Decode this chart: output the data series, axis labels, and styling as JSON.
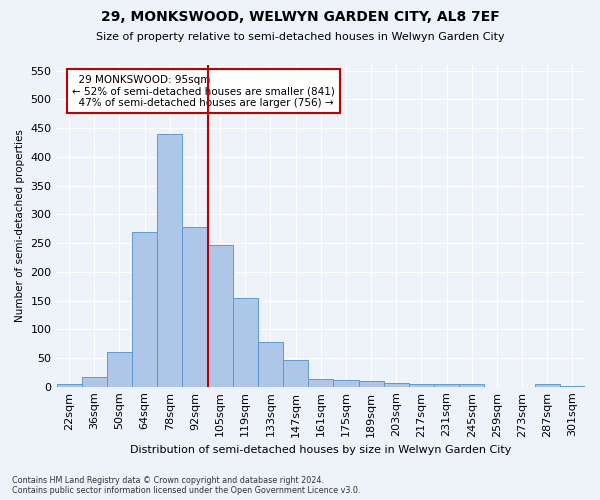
{
  "title": "29, MONKSWOOD, WELWYN GARDEN CITY, AL8 7EF",
  "subtitle": "Size of property relative to semi-detached houses in Welwyn Garden City",
  "xlabel": "Distribution of semi-detached houses by size in Welwyn Garden City",
  "ylabel": "Number of semi-detached properties",
  "footnote": "Contains HM Land Registry data © Crown copyright and database right 2024.\nContains public sector information licensed under the Open Government Licence v3.0.",
  "bin_labels": [
    "22sqm",
    "36sqm",
    "50sqm",
    "64sqm",
    "78sqm",
    "92sqm",
    "105sqm",
    "119sqm",
    "133sqm",
    "147sqm",
    "161sqm",
    "175sqm",
    "189sqm",
    "203sqm",
    "217sqm",
    "231sqm",
    "245sqm",
    "259sqm",
    "273sqm",
    "287sqm",
    "301sqm"
  ],
  "bar_values": [
    5,
    17,
    60,
    270,
    440,
    278,
    246,
    155,
    78,
    46,
    13,
    12,
    10,
    6,
    5,
    4,
    4,
    0,
    0,
    4,
    2
  ],
  "bar_color": "#aec6e8",
  "bar_edge_color": "#5b9bd5",
  "highlight_color": "#c00000",
  "property_label": "29 MONKSWOOD: 95sqm",
  "smaller_pct": 52,
  "smaller_count": 841,
  "larger_pct": 47,
  "larger_count": 756,
  "vline_position": 5.5,
  "ylim": [
    0,
    560
  ],
  "yticks": [
    0,
    50,
    100,
    150,
    200,
    250,
    300,
    350,
    400,
    450,
    500,
    550
  ],
  "background_color": "#eef2f9",
  "grid_color": "#ffffff",
  "annotation_box_color": "#ffffff",
  "annotation_box_edge": "#c00000"
}
